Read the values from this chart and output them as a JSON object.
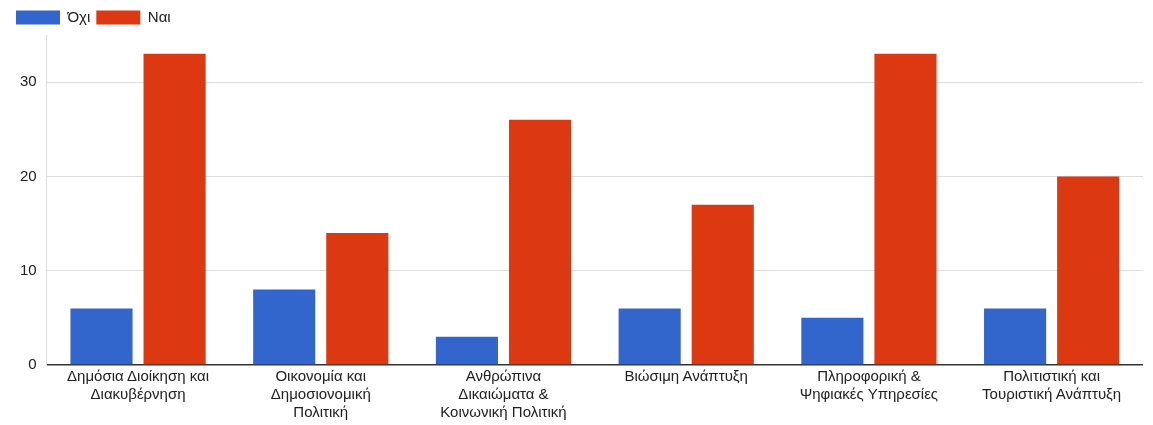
{
  "chart_data": {
    "type": "bar",
    "categories": [
      "Δημόσια Διοίκηση και Διακυβέρνηση",
      "Οικονομία και Δημοσιονομική Πολιτική",
      "Ανθρώπινα Δικαιώματα & Κοινωνική Πολιτική",
      "Βιώσιμη Ανάπτυξη",
      "Πληροφορική & Ψηφιακές Υπηρεσίες",
      "Πολιτιστική και Τουριστική Ανάπτυξη"
    ],
    "series": [
      {
        "name": "Όχι",
        "color": "#3366cc",
        "values": [
          6,
          8,
          3,
          6,
          5,
          6
        ]
      },
      {
        "name": "Ναι",
        "color": "#dc3912",
        "values": [
          33,
          14,
          26,
          17,
          33,
          20
        ]
      }
    ],
    "ylim": [
      0,
      35
    ],
    "yticks": [
      0,
      10,
      20,
      30
    ],
    "grid": "y",
    "legend": "top left"
  }
}
